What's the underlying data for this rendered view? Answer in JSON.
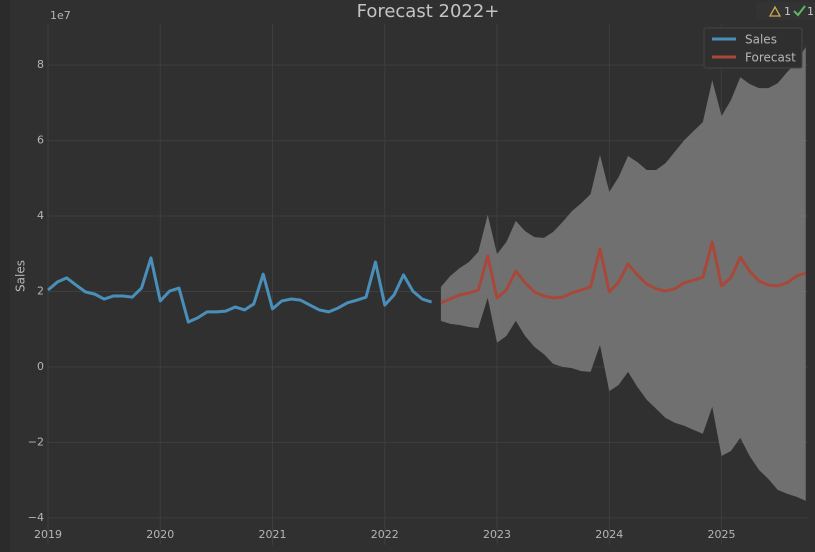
{
  "chart_data": {
    "type": "line",
    "title": "Forecast 2022+",
    "y_label": "Sales",
    "y_offset_label": "1e7",
    "badges": {
      "warnings": "1",
      "passed": "1"
    },
    "xlim": [
      2019,
      2025.77
    ],
    "xticks": [
      2019,
      2020,
      2021,
      2022,
      2023,
      2024,
      2025
    ],
    "ylim": [
      -4.72,
      9.09
    ],
    "yticks": [
      {
        "value": -4,
        "label": "−4"
      },
      {
        "value": -2,
        "label": "−2"
      },
      0,
      2,
      4,
      6,
      8
    ],
    "grid": true,
    "legend": "upper right",
    "series": [
      {
        "name": "Sales",
        "color": "#4a8fba",
        "x": [
          2019,
          2019.083,
          2019.167,
          2019.25,
          2019.333,
          2019.417,
          2019.5,
          2019.583,
          2019.667,
          2019.75,
          2019.833,
          2019.917,
          2020,
          2020.083,
          2020.167,
          2020.25,
          2020.333,
          2020.417,
          2020.5,
          2020.583,
          2020.667,
          2020.75,
          2020.833,
          2020.917,
          2021,
          2021.083,
          2021.167,
          2021.25,
          2021.333,
          2021.417,
          2021.5,
          2021.583,
          2021.667,
          2021.75,
          2021.833,
          2021.917,
          2022,
          2022.083,
          2022.167,
          2022.25,
          2022.333,
          2022.417
        ],
        "values": [
          2.04,
          2.25,
          2.36,
          2.17,
          1.99,
          1.93,
          1.8,
          1.88,
          1.88,
          1.85,
          2.09,
          2.89,
          1.75,
          2.01,
          2.09,
          1.19,
          1.3,
          1.46,
          1.46,
          1.48,
          1.59,
          1.51,
          1.67,
          2.46,
          1.54,
          1.75,
          1.8,
          1.77,
          1.64,
          1.51,
          1.46,
          1.56,
          1.7,
          1.77,
          1.85,
          2.78,
          1.64,
          1.91,
          2.44,
          2.01,
          1.8,
          1.72
        ]
      },
      {
        "name": "Forecast",
        "color": "#a8483a",
        "band_color": "#7b7b7b",
        "x": [
          2022.5,
          2022.583,
          2022.667,
          2022.75,
          2022.833,
          2022.917,
          2023,
          2023.083,
          2023.167,
          2023.25,
          2023.333,
          2023.417,
          2023.5,
          2023.583,
          2023.667,
          2023.75,
          2023.833,
          2023.917,
          2024,
          2024.083,
          2024.167,
          2024.25,
          2024.333,
          2024.417,
          2024.5,
          2024.583,
          2024.667,
          2024.75,
          2024.833,
          2024.917,
          2025,
          2025.083,
          2025.167,
          2025.25,
          2025.333,
          2025.417,
          2025.5,
          2025.583,
          2025.667,
          2025.75
        ],
        "values": [
          1.7,
          1.8,
          1.91,
          1.96,
          2.04,
          2.94,
          1.83,
          2.04,
          2.54,
          2.23,
          1.99,
          1.88,
          1.83,
          1.85,
          1.96,
          2.04,
          2.12,
          3.13,
          1.99,
          2.25,
          2.73,
          2.44,
          2.2,
          2.07,
          2.01,
          2.07,
          2.23,
          2.3,
          2.38,
          3.31,
          2.15,
          2.36,
          2.91,
          2.54,
          2.28,
          2.17,
          2.15,
          2.23,
          2.41,
          2.49
        ],
        "upper": [
          2.12,
          2.41,
          2.62,
          2.78,
          3.05,
          4.03,
          2.99,
          3.31,
          3.87,
          3.6,
          3.44,
          3.42,
          3.58,
          3.84,
          4.13,
          4.34,
          4.58,
          5.62,
          4.64,
          5.03,
          5.59,
          5.43,
          5.22,
          5.22,
          5.4,
          5.7,
          6.01,
          6.25,
          6.49,
          7.6,
          6.65,
          7.07,
          7.68,
          7.5,
          7.39,
          7.39,
          7.52,
          7.81,
          8.08,
          8.48
        ],
        "lower": [
          1.22,
          1.14,
          1.11,
          1.06,
          1.03,
          1.83,
          0.64,
          0.82,
          1.22,
          0.82,
          0.53,
          0.34,
          0.08,
          0,
          -0.03,
          -0.11,
          -0.13,
          0.58,
          -0.64,
          -0.48,
          -0.13,
          -0.53,
          -0.87,
          -1.11,
          -1.35,
          -1.48,
          -1.56,
          -1.67,
          -1.77,
          -1.06,
          -2.36,
          -2.23,
          -1.88,
          -2.36,
          -2.73,
          -2.97,
          -3.26,
          -3.36,
          -3.44,
          -3.55
        ]
      }
    ]
  }
}
